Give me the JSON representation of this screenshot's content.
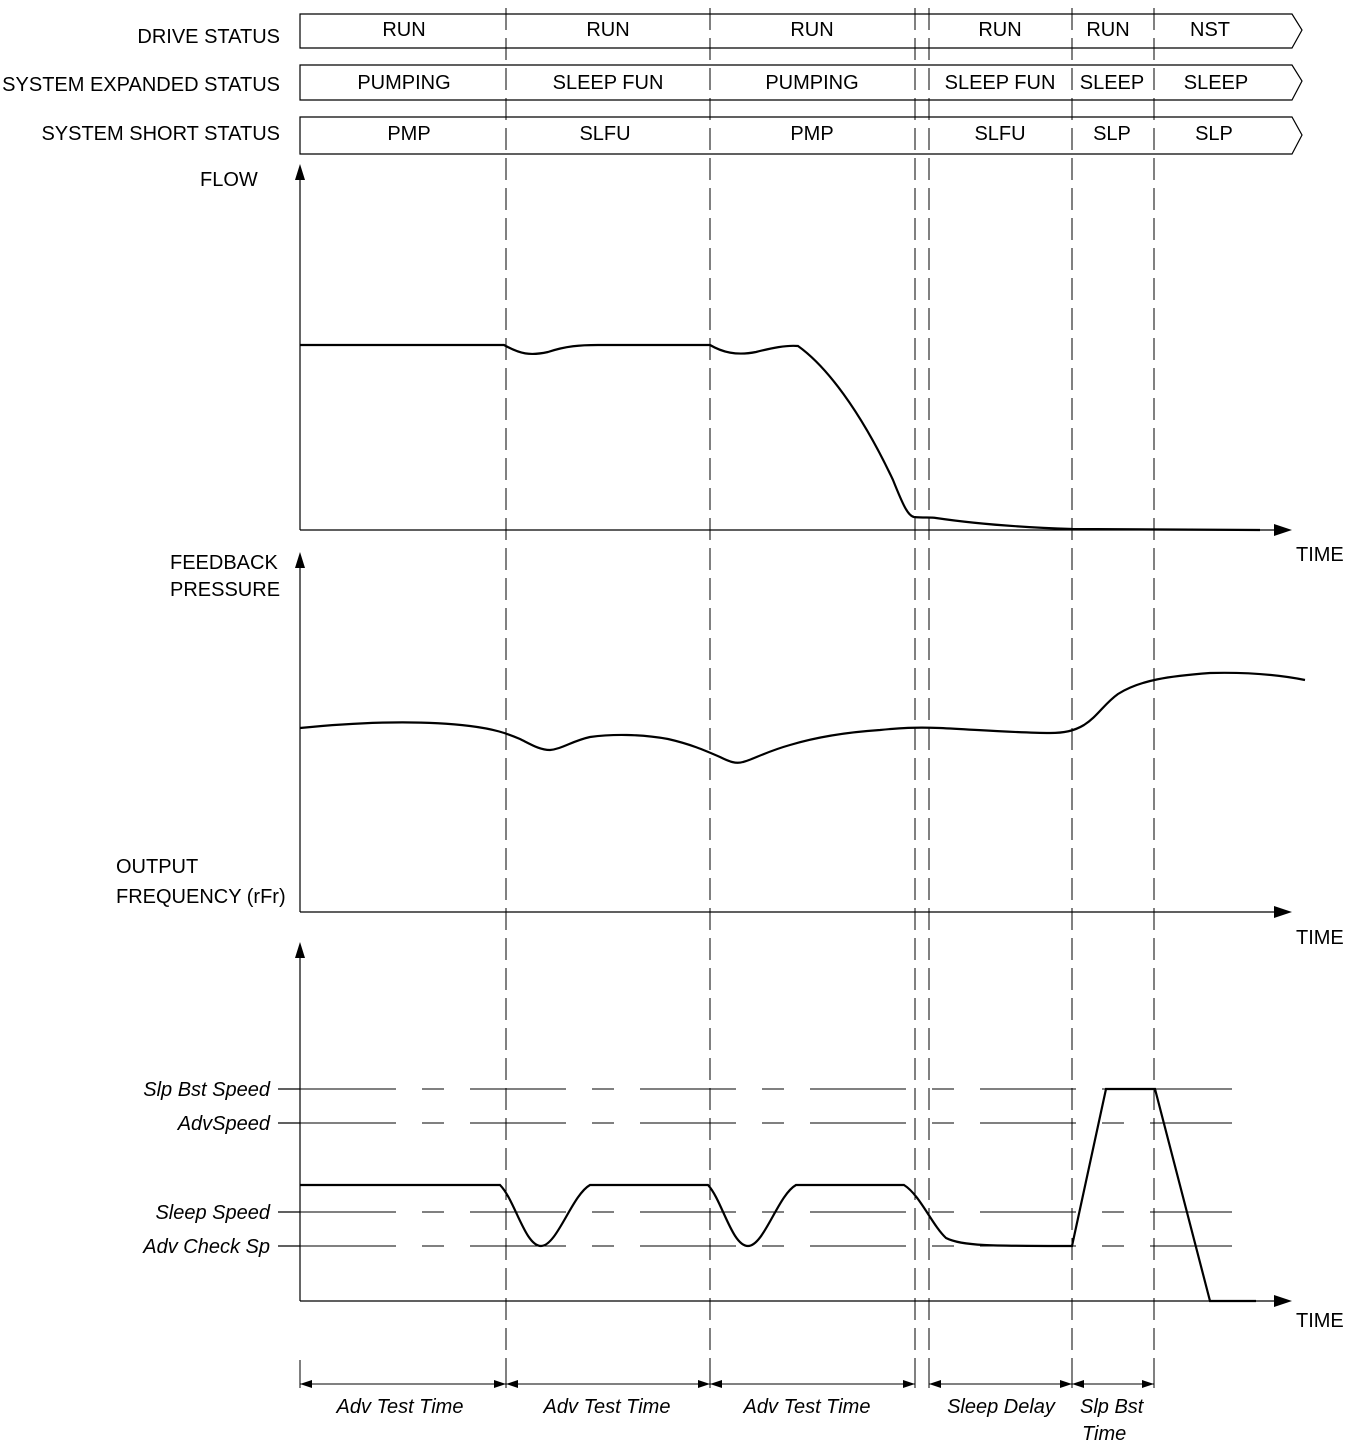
{
  "status_rows": [
    {
      "label": "DRIVE STATUS",
      "cells": [
        "RUN",
        "RUN",
        "RUN",
        "RUN",
        "RUN",
        "NST"
      ]
    },
    {
      "label": "SYSTEM EXPANDED STATUS",
      "cells": [
        "PUMPING",
        "SLEEP FUN",
        "PUMPING",
        "SLEEP FUN",
        "SLEEP",
        "SLEEP"
      ]
    },
    {
      "label": "SYSTEM SHORT STATUS",
      "cells": [
        "PMP",
        "SLFU",
        "PMP",
        "SLFU",
        "SLP",
        "SLP"
      ]
    }
  ],
  "plots": {
    "flow": {
      "label_lines": [
        "FLOW"
      ],
      "time_label": "TIME"
    },
    "pressure": {
      "label_lines": [
        "FEEDBACK",
        "PRESSURE"
      ],
      "time_label": "TIME"
    },
    "frequency": {
      "label_lines": [
        "OUTPUT",
        "FREQUENCY (rFr)"
      ],
      "time_label": "TIME"
    }
  },
  "speed_levels": [
    "Slp  Bst Speed",
    "AdvSpeed",
    "Sleep  Speed",
    "Adv Check Sp"
  ],
  "intervals": [
    {
      "lines": [
        "Adv Test Time"
      ]
    },
    {
      "lines": [
        "Adv Test Time"
      ]
    },
    {
      "lines": [
        "Adv Test Time"
      ]
    },
    {
      "lines": [
        "Sleep Delay"
      ]
    },
    {
      "lines": [
        "Slp  Bst",
        "Time"
      ]
    }
  ]
}
